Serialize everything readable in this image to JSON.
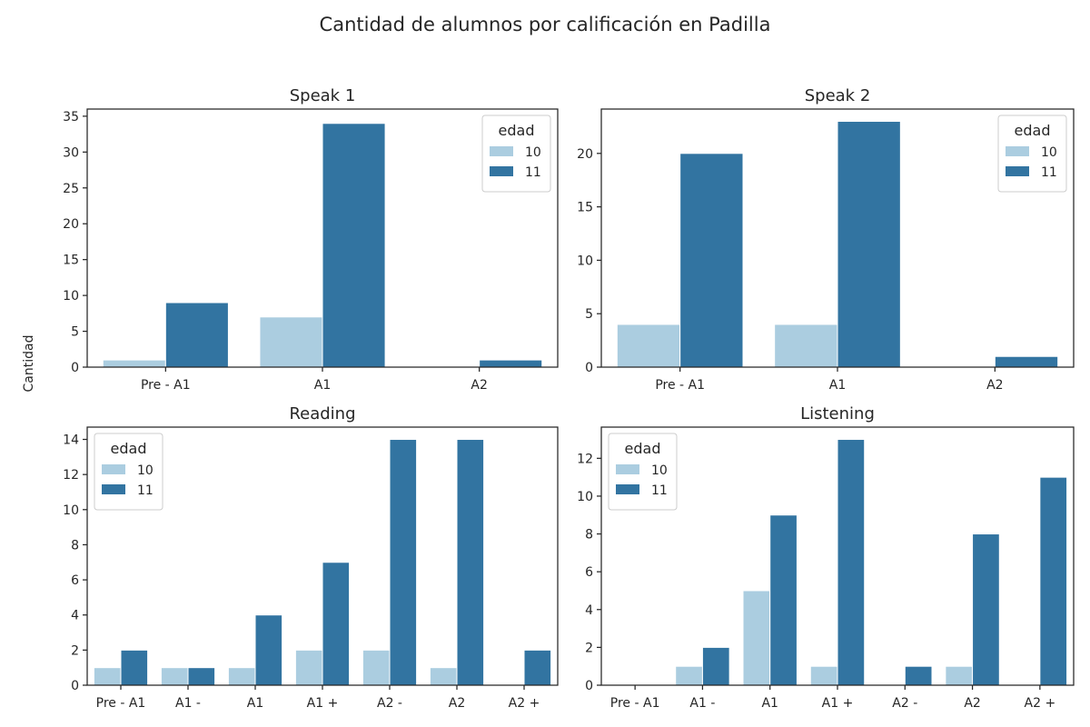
{
  "suptitle": "Cantidad de alumnos por calificación en Padilla",
  "ylabel": "Cantidad",
  "colors": {
    "age10": "#abcde0",
    "age11": "#3274a1",
    "axis": "#262626"
  },
  "chart_data": [
    {
      "type": "bar",
      "title": "Speak 1",
      "categories": [
        "Pre - A1",
        "A1",
        "A2"
      ],
      "series": [
        {
          "name": "10",
          "values": [
            1,
            7,
            0
          ]
        },
        {
          "name": "11",
          "values": [
            9,
            34,
            1
          ]
        }
      ],
      "ylim": [
        0,
        36
      ],
      "yticks": [
        0,
        5,
        10,
        15,
        20,
        25,
        30,
        35
      ],
      "legend": {
        "title": "edad",
        "position": "upper right"
      }
    },
    {
      "type": "bar",
      "title": "Speak 2",
      "categories": [
        "Pre - A1",
        "A1",
        "A2"
      ],
      "series": [
        {
          "name": "10",
          "values": [
            4,
            4,
            0
          ]
        },
        {
          "name": "11",
          "values": [
            20,
            23,
            1
          ]
        }
      ],
      "ylim": [
        0,
        24.15
      ],
      "yticks": [
        0,
        5,
        10,
        15,
        20
      ],
      "legend": {
        "title": "edad",
        "position": "upper right"
      }
    },
    {
      "type": "bar",
      "title": "Reading",
      "categories": [
        "Pre - A1",
        "A1 -",
        "A1",
        "A1 +",
        "A2 -",
        "A2",
        "A2 +"
      ],
      "series": [
        {
          "name": "10",
          "values": [
            1,
            1,
            1,
            2,
            2,
            1,
            0
          ]
        },
        {
          "name": "11",
          "values": [
            2,
            1,
            4,
            7,
            14,
            14,
            2
          ]
        }
      ],
      "ylim": [
        0,
        14.7
      ],
      "yticks": [
        0,
        2,
        4,
        6,
        8,
        10,
        12,
        14
      ],
      "legend": {
        "title": "edad",
        "position": "upper left"
      }
    },
    {
      "type": "bar",
      "title": "Listening",
      "categories": [
        "Pre - A1",
        "A1 -",
        "A1",
        "A1 +",
        "A2 -",
        "A2",
        "A2 +"
      ],
      "series": [
        {
          "name": "10",
          "values": [
            0,
            1,
            5,
            1,
            0,
            1,
            0
          ]
        },
        {
          "name": "11",
          "values": [
            0,
            2,
            9,
            13,
            1,
            8,
            11
          ]
        }
      ],
      "ylim": [
        0,
        13.65
      ],
      "yticks": [
        0,
        2,
        4,
        6,
        8,
        10,
        12
      ],
      "legend": {
        "title": "edad",
        "position": "upper left"
      }
    }
  ]
}
